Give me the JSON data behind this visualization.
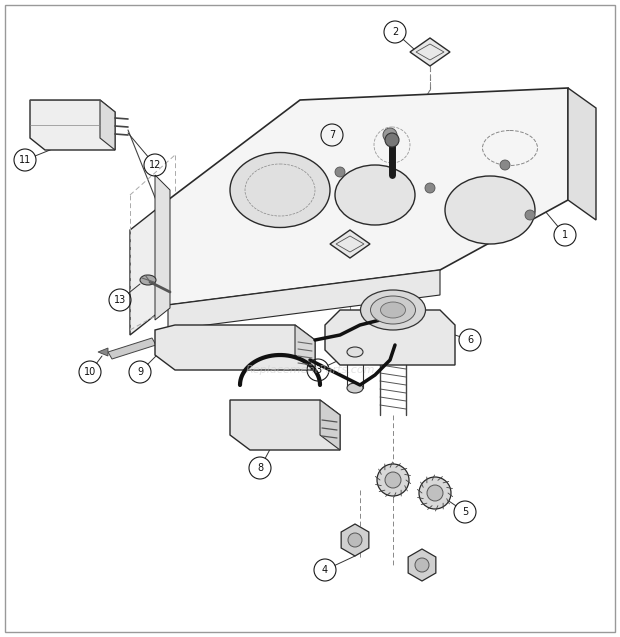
{
  "background_color": "#ffffff",
  "watermark": "ReplacementParts.com",
  "lc": "#2a2a2a"
}
